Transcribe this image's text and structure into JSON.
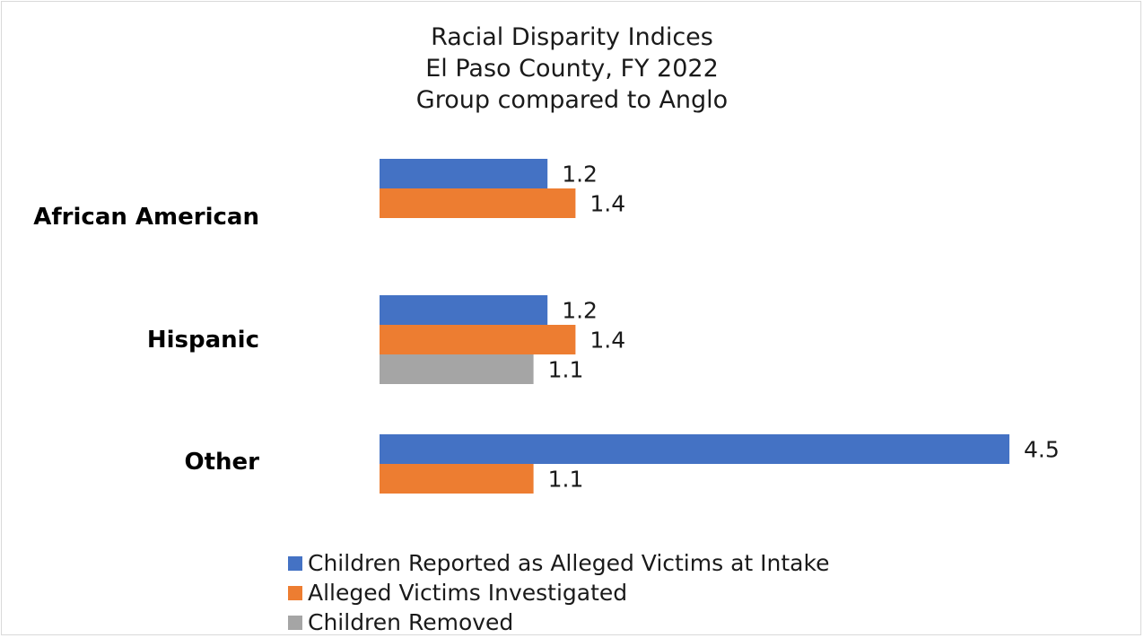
{
  "chart_data": {
    "type": "bar",
    "orientation": "horizontal",
    "title": "Racial Disparity Indices",
    "title_lines": [
      "Racial Disparity Indices",
      "El Paso County, FY 2022",
      "Group compared to Anglo"
    ],
    "categories": [
      "African American",
      "Hispanic",
      "Other"
    ],
    "series": [
      {
        "name": "Children Reported as Alleged Victims at Intake",
        "color": "#4472c4",
        "values": [
          1.2,
          1.2,
          4.5
        ]
      },
      {
        "name": "Alleged Victims Investigated",
        "color": "#ed7d31",
        "values": [
          1.4,
          1.4,
          1.1
        ]
      },
      {
        "name": "Children Removed",
        "color": "#a5a5a5",
        "values": [
          null,
          1.1,
          null
        ]
      }
    ],
    "xlim": [
      0,
      5
    ],
    "grid": false,
    "axis_visible": false,
    "legend_position": "bottom"
  }
}
